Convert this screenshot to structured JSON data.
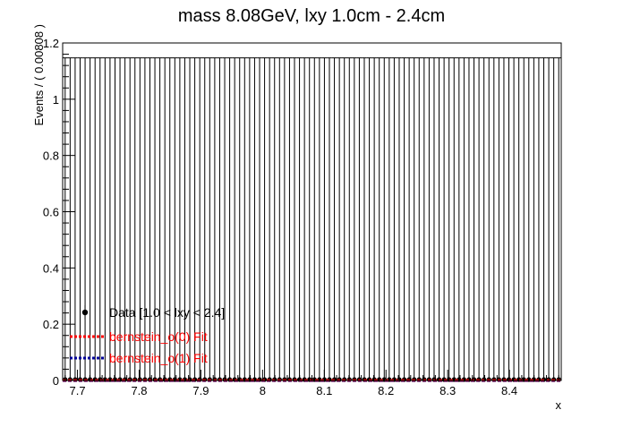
{
  "chart_data": {
    "type": "scatter",
    "title": "mass 8.08GeV, lxy 1.0cm - 2.4cm",
    "xlabel": "x",
    "ylabel": "Events / ( 0.00808 )",
    "xlim": [
      7.676,
      8.484
    ],
    "ylim": [
      0,
      1.2
    ],
    "bin_width": 0.00808,
    "n_bins": 100,
    "x_ticks": [
      7.7,
      7.8,
      7.9,
      8.0,
      8.1,
      8.2,
      8.3,
      8.4
    ],
    "x_tick_labels": [
      "7.7",
      "7.8",
      "7.9",
      "8",
      "8.1",
      "8.2",
      "8.3",
      "8.4"
    ],
    "y_ticks": [
      0,
      0.2,
      0.4,
      0.6,
      0.8,
      1.0,
      1.2
    ],
    "y_tick_labels": [
      "0",
      "0.2",
      "0.4",
      "0.6",
      "0.8",
      "1",
      "1.2"
    ],
    "data_values_all_bins": 0,
    "error_bar_upper": 1.147,
    "grid": false,
    "legend_position": "bottom-left",
    "series": [
      {
        "name": "Data [1.0 < lxy < 2.4]",
        "style": "points",
        "color": "#000000"
      },
      {
        "name": "bernstein_o(0) Fit",
        "style": "dashed",
        "color": "#ff0000",
        "values_all_bins": 0
      },
      {
        "name": "bernstein_o(1) Fit",
        "style": "dashed",
        "color": "#000099",
        "values_all_bins": 0
      }
    ]
  }
}
